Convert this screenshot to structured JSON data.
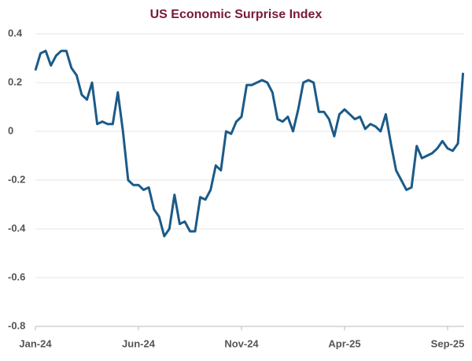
{
  "chart_data": {
    "type": "line",
    "title": "US Economic Surprise Index",
    "categories": [
      "Jan-24",
      null,
      null,
      null,
      null,
      null,
      null,
      null,
      null,
      null,
      null,
      null,
      null,
      null,
      null,
      null,
      null,
      null,
      null,
      null,
      "Jun-24",
      null,
      null,
      null,
      null,
      null,
      null,
      null,
      null,
      null,
      null,
      null,
      null,
      null,
      null,
      null,
      null,
      null,
      null,
      null,
      "Nov-24",
      null,
      null,
      null,
      null,
      null,
      null,
      null,
      null,
      null,
      null,
      null,
      null,
      null,
      null,
      null,
      null,
      null,
      null,
      null,
      "Apr-25",
      null,
      null,
      null,
      null,
      null,
      null,
      null,
      null,
      null,
      null,
      null,
      null,
      null,
      null,
      null,
      null,
      null,
      null,
      null,
      "Sep-25",
      null,
      null,
      null
    ],
    "series": [
      {
        "color": "#1b5a88",
        "values": [
          0.25,
          0.32,
          0.33,
          0.27,
          0.31,
          0.33,
          0.33,
          0.26,
          0.23,
          0.15,
          0.13,
          0.2,
          0.03,
          0.04,
          0.03,
          0.03,
          0.16,
          0.0,
          -0.2,
          -0.22,
          -0.22,
          -0.24,
          -0.23,
          -0.32,
          -0.35,
          -0.43,
          -0.4,
          -0.26,
          -0.38,
          -0.37,
          -0.41,
          -0.41,
          -0.27,
          -0.28,
          -0.24,
          -0.14,
          -0.16,
          0.0,
          -0.01,
          0.04,
          0.06,
          0.19,
          0.19,
          0.2,
          0.21,
          0.2,
          0.16,
          0.05,
          0.04,
          0.06,
          0.0,
          0.09,
          0.2,
          0.21,
          0.2,
          0.08,
          0.08,
          0.05,
          -0.02,
          0.07,
          0.09,
          0.07,
          0.05,
          0.06,
          0.01,
          0.03,
          0.02,
          0.0,
          0.07,
          -0.05,
          -0.16,
          -0.2,
          -0.24,
          -0.23,
          -0.06,
          -0.11,
          -0.1,
          -0.09,
          -0.07,
          -0.04,
          -0.07,
          -0.08,
          -0.05,
          0.24
        ]
      }
    ],
    "ylim": [
      -0.8,
      0.4
    ],
    "yticks": [
      0.4,
      0.2,
      0,
      -0.2,
      -0.4,
      -0.6,
      -0.8
    ],
    "grid": true
  }
}
